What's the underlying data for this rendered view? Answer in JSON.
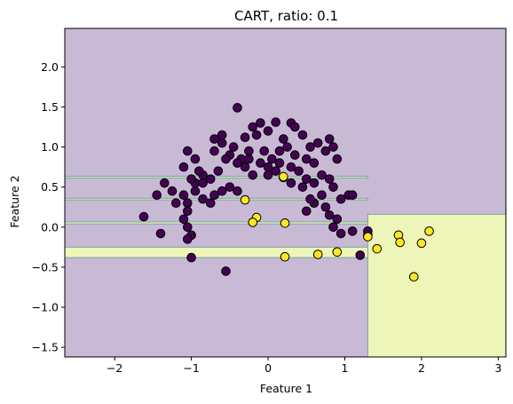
{
  "chart_data": {
    "type": "scatter",
    "title": "CART, ratio: 0.1",
    "xlabel": "Feature 1",
    "ylabel": "Feature 2",
    "xlim": [
      -2.65,
      3.1
    ],
    "ylim": [
      -1.62,
      2.48
    ],
    "xticks": [
      -2,
      -1,
      0,
      1,
      2,
      3
    ],
    "yticks": [
      -1.5,
      -1.0,
      -0.5,
      0.0,
      0.5,
      1.0,
      1.5,
      2.0
    ],
    "xtick_labels": [
      "−2",
      "−1",
      "0",
      "1",
      "2",
      "3"
    ],
    "ytick_labels": [
      "−1.5",
      "−1.0",
      "−0.5",
      "0.0",
      "0.5",
      "1.0",
      "1.5",
      "2.0"
    ],
    "grid": false,
    "colors": {
      "class0_region": "#c8b9d5",
      "class1_region": "#eef5b9",
      "boundary": "#7aa6a6",
      "class0_point": "#440154",
      "class1_point": "#fde725",
      "point_edge": "#000000"
    },
    "regions_class1": [
      {
        "x": [
          1.3,
          3.1
        ],
        "y": [
          -1.62,
          0.16
        ]
      },
      {
        "x": [
          -2.65,
          1.3
        ],
        "y": [
          -0.38,
          -0.25
        ]
      },
      {
        "x": [
          -2.65,
          1.3
        ],
        "y": [
          0.04,
          0.065
        ]
      },
      {
        "x": [
          -2.65,
          1.3
        ],
        "y": [
          0.34,
          0.36
        ]
      },
      {
        "x": [
          -2.65,
          1.3
        ],
        "y": [
          0.615,
          0.635
        ]
      }
    ],
    "series": [
      {
        "class": 0,
        "points": [
          [
            -0.4,
            1.49
          ],
          [
            -0.1,
            1.3
          ],
          [
            0.1,
            1.31
          ],
          [
            -0.7,
            1.1
          ],
          [
            -0.6,
            1.05
          ],
          [
            -0.45,
            1.0
          ],
          [
            -0.2,
            1.25
          ],
          [
            -0.3,
            1.12
          ],
          [
            -0.5,
            0.9
          ],
          [
            -0.35,
            0.85
          ],
          [
            -0.25,
            0.95
          ],
          [
            -0.15,
            1.15
          ],
          [
            0.0,
            1.2
          ],
          [
            0.2,
            1.1
          ],
          [
            0.3,
            1.3
          ],
          [
            0.35,
            1.25
          ],
          [
            0.45,
            1.15
          ],
          [
            0.55,
            1.0
          ],
          [
            0.65,
            1.05
          ],
          [
            0.8,
            1.1
          ],
          [
            0.85,
            1.0
          ],
          [
            0.9,
            0.85
          ],
          [
            0.75,
            0.95
          ],
          [
            0.6,
            0.8
          ],
          [
            0.5,
            0.85
          ],
          [
            0.4,
            0.7
          ],
          [
            0.35,
            0.9
          ],
          [
            0.25,
            1.0
          ],
          [
            0.15,
            0.95
          ],
          [
            0.05,
            0.85
          ],
          [
            -0.05,
            0.95
          ],
          [
            -0.1,
            0.8
          ],
          [
            -0.2,
            0.65
          ],
          [
            -0.3,
            0.75
          ],
          [
            -0.4,
            0.8
          ],
          [
            -0.55,
            0.85
          ],
          [
            -0.65,
            0.7
          ],
          [
            -0.75,
            0.6
          ],
          [
            -0.85,
            0.65
          ],
          [
            -0.95,
            0.55
          ],
          [
            -1.05,
            0.95
          ],
          [
            -1.1,
            0.75
          ],
          [
            -0.95,
            0.85
          ],
          [
            -1.25,
            0.45
          ],
          [
            -1.35,
            0.55
          ],
          [
            -1.45,
            0.4
          ],
          [
            -1.2,
            0.3
          ],
          [
            -1.1,
            0.4
          ],
          [
            -1.05,
            0.3
          ],
          [
            -0.95,
            0.45
          ],
          [
            -0.85,
            0.35
          ],
          [
            -0.75,
            0.3
          ],
          [
            -0.7,
            0.4
          ],
          [
            -0.6,
            0.45
          ],
          [
            -0.5,
            0.5
          ],
          [
            -0.4,
            0.45
          ],
          [
            0.0,
            0.65
          ],
          [
            0.1,
            0.7
          ],
          [
            0.2,
            0.62
          ],
          [
            0.3,
            0.55
          ],
          [
            0.45,
            0.5
          ],
          [
            0.5,
            0.6
          ],
          [
            0.6,
            0.55
          ],
          [
            0.7,
            0.65
          ],
          [
            0.8,
            0.6
          ],
          [
            0.85,
            0.5
          ],
          [
            0.7,
            0.4
          ],
          [
            0.6,
            0.3
          ],
          [
            0.5,
            0.2
          ],
          [
            0.55,
            0.35
          ],
          [
            0.75,
            0.25
          ],
          [
            0.8,
            0.15
          ],
          [
            0.85,
            0.0
          ],
          [
            0.9,
            0.1
          ],
          [
            0.95,
            0.35
          ],
          [
            1.05,
            0.4
          ],
          [
            1.1,
            0.4
          ],
          [
            1.3,
            -0.1
          ],
          [
            1.3,
            -0.05
          ],
          [
            1.1,
            -0.05
          ],
          [
            1.2,
            -0.35
          ],
          [
            0.95,
            -0.08
          ],
          [
            -1.05,
            0.2
          ],
          [
            -1.1,
            0.1
          ],
          [
            -1.05,
            0.0
          ],
          [
            -1.0,
            -0.1
          ],
          [
            -1.05,
            -0.15
          ],
          [
            -1.0,
            -0.38
          ],
          [
            -1.4,
            -0.08
          ],
          [
            -1.62,
            0.13
          ],
          [
            -0.55,
            -0.55
          ],
          [
            -0.85,
            0.55
          ],
          [
            -1.0,
            0.6
          ],
          [
            -0.9,
            0.7
          ],
          [
            -0.25,
            0.85
          ],
          [
            0.0,
            0.75
          ],
          [
            0.15,
            0.8
          ],
          [
            0.3,
            0.75
          ],
          [
            -0.7,
            0.95
          ],
          [
            -0.6,
            1.15
          ]
        ]
      },
      {
        "class": 1,
        "points": [
          [
            0.2,
            0.63
          ],
          [
            -0.3,
            0.34
          ],
          [
            -0.15,
            0.12
          ],
          [
            -0.2,
            0.06
          ],
          [
            0.22,
            0.05
          ],
          [
            0.22,
            -0.37
          ],
          [
            0.65,
            -0.34
          ],
          [
            0.9,
            -0.31
          ],
          [
            1.3,
            -0.12
          ],
          [
            1.42,
            -0.27
          ],
          [
            1.7,
            -0.1
          ],
          [
            1.72,
            -0.19
          ],
          [
            2.0,
            -0.2
          ],
          [
            2.1,
            -0.05
          ],
          [
            1.9,
            -0.62
          ]
        ]
      }
    ]
  }
}
